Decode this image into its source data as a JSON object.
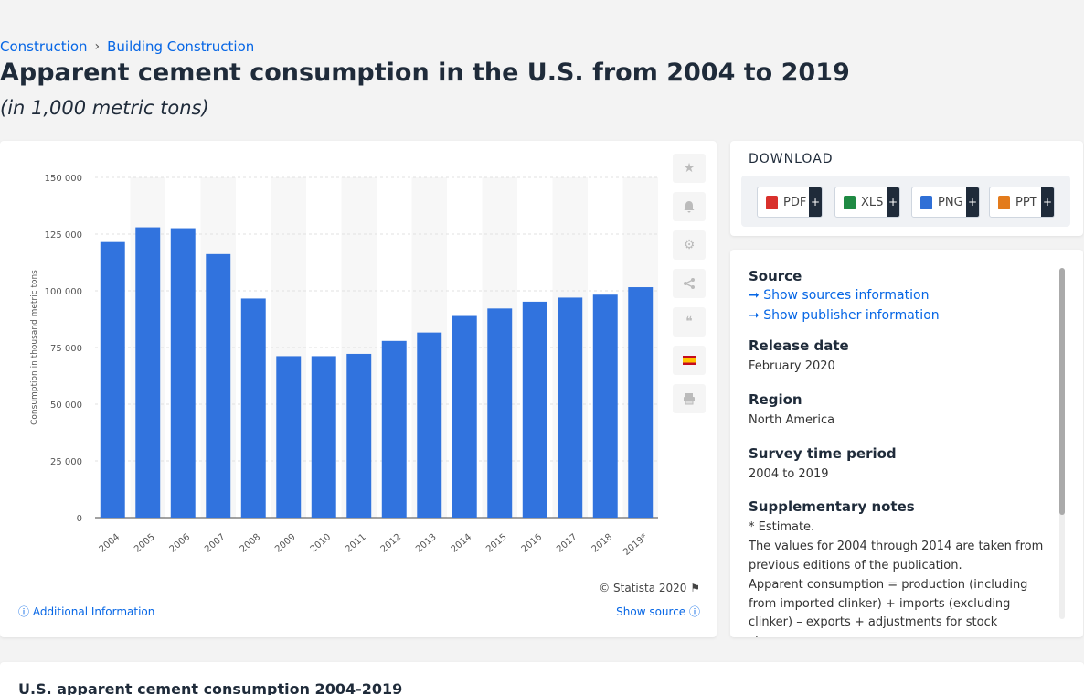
{
  "breadcrumb": [
    "Construction",
    "Building Construction"
  ],
  "title": "Apparent cement consumption in the U.S. from 2004 to 2019",
  "subtitle": "(in 1,000 metric tons)",
  "credit": "© Statista 2020",
  "additional_info": "Additional Information",
  "show_source": "Show source",
  "download": {
    "title": "DOWNLOAD",
    "buttons": [
      {
        "label": "PDF",
        "color": "#d9302c"
      },
      {
        "label": "XLS",
        "color": "#1f8a43"
      },
      {
        "label": "PNG",
        "color": "#2f6fd6"
      },
      {
        "label": "PPT",
        "color": "#e37b1c"
      }
    ]
  },
  "info": {
    "source_label": "Source",
    "show_sources": "Show sources information",
    "show_publisher": "Show publisher information",
    "release_label": "Release date",
    "release_value": "February 2020",
    "region_label": "Region",
    "region_value": "North America",
    "period_label": "Survey time period",
    "period_value": "2004 to 2019",
    "notes_label": "Supplementary notes",
    "notes_1": "* Estimate.",
    "notes_2": "The values for 2004 through 2014 are taken from previous editions of the publication.",
    "notes_3": "Apparent consumption = production (including from imported clinker) + imports (excluding clinker) – exports + adjustments for stock changes."
  },
  "bottom_title": "U.S. apparent cement consumption 2004-2019",
  "chart_data": {
    "type": "bar",
    "categories": [
      "2004",
      "2005",
      "2006",
      "2007",
      "2008",
      "2009",
      "2010",
      "2011",
      "2012",
      "2013",
      "2014",
      "2015",
      "2016",
      "2017",
      "2018",
      "2019*"
    ],
    "values": [
      121500,
      128000,
      127600,
      116200,
      96600,
      71200,
      71200,
      72200,
      77900,
      81600,
      88900,
      92200,
      95200,
      97000,
      98300,
      101600
    ],
    "ylabel": "Consumption in thousand metric tons",
    "ylim": [
      0,
      150000
    ],
    "yticks": [
      0,
      25000,
      50000,
      75000,
      100000,
      125000,
      150000
    ],
    "ytick_labels": [
      "0",
      "25 000",
      "50 000",
      "75 000",
      "100 000",
      "125 000",
      "150 000"
    ],
    "bar_color": "#3173de",
    "grid": true
  }
}
